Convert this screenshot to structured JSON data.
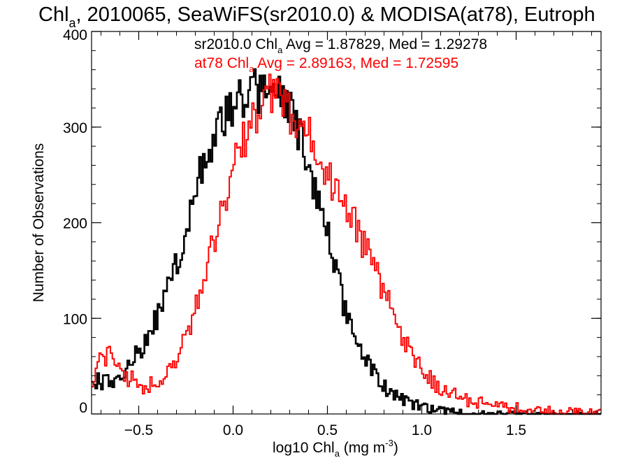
{
  "chart_data": {
    "type": "histogram",
    "title_parts": [
      "Chl",
      "a",
      ", 2010065, SeaWiFS(sr2010.0) & MODISA(at78), Eutroph"
    ],
    "xlabel_parts": [
      "log10 Chl",
      "a",
      " (mg m",
      "-3",
      ")"
    ],
    "ylabel": "Number of Observations",
    "xlim": [
      -0.75,
      1.95
    ],
    "ylim": [
      0,
      400
    ],
    "xticks": [
      -0.5,
      0.0,
      0.5,
      1.0,
      1.5
    ],
    "xtick_labels": [
      "−0.5",
      "0.0",
      "0.5",
      "1.0",
      "1.5"
    ],
    "yticks": [
      0,
      100,
      200,
      300,
      400
    ],
    "ytick_labels": [
      "0",
      "100",
      "200",
      "300",
      "400"
    ],
    "x_minor_step": 0.1,
    "y_minor_step": 20,
    "series": [
      {
        "name": "sr2010.0",
        "color": "#000000",
        "stats_parts": [
          "sr2010.0 Chl",
          "a",
          " Avg = 1.87829, Med = 1.29278"
        ],
        "peaks": [
          [
            -0.75,
            35
          ],
          [
            -0.6,
            35
          ],
          [
            -0.5,
            65
          ],
          [
            -0.4,
            100
          ],
          [
            -0.3,
            155
          ],
          [
            -0.2,
            235
          ],
          [
            -0.1,
            295
          ],
          [
            0.0,
            325
          ],
          [
            0.1,
            338
          ],
          [
            0.2,
            340
          ],
          [
            0.3,
            318
          ],
          [
            0.4,
            265
          ],
          [
            0.5,
            190
          ],
          [
            0.6,
            105
          ],
          [
            0.7,
            55
          ],
          [
            0.8,
            30
          ],
          [
            0.9,
            14
          ],
          [
            1.0,
            7
          ],
          [
            1.1,
            3
          ],
          [
            1.2,
            1
          ],
          [
            1.3,
            0
          ],
          [
            1.95,
            0
          ]
        ]
      },
      {
        "name": "at78",
        "color": "#ff0000",
        "stats_parts": [
          "at78 Chl",
          "a",
          " Avg = 2.89163, Med = 1.72595"
        ],
        "peaks": [
          [
            -0.75,
            35
          ],
          [
            -0.7,
            55
          ],
          [
            -0.65,
            60
          ],
          [
            -0.6,
            45
          ],
          [
            -0.5,
            30
          ],
          [
            -0.4,
            30
          ],
          [
            -0.3,
            55
          ],
          [
            -0.2,
            110
          ],
          [
            -0.1,
            180
          ],
          [
            0.0,
            255
          ],
          [
            0.1,
            310
          ],
          [
            0.2,
            335
          ],
          [
            0.3,
            315
          ],
          [
            0.4,
            290
          ],
          [
            0.5,
            250
          ],
          [
            0.6,
            215
          ],
          [
            0.7,
            175
          ],
          [
            0.8,
            125
          ],
          [
            0.9,
            80
          ],
          [
            1.0,
            45
          ],
          [
            1.1,
            25
          ],
          [
            1.2,
            17
          ],
          [
            1.3,
            12
          ],
          [
            1.4,
            8
          ],
          [
            1.6,
            4
          ],
          [
            1.8,
            2
          ],
          [
            1.95,
            1
          ]
        ]
      }
    ]
  }
}
